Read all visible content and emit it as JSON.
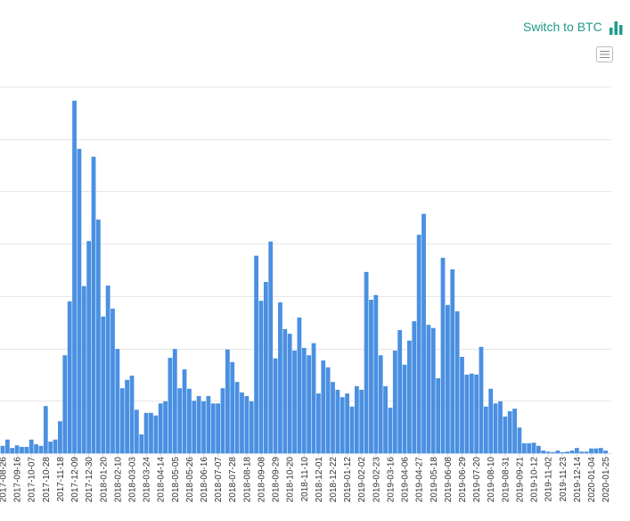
{
  "switch_label": "Switch to BTC",
  "chart_data": {
    "type": "bar",
    "color": "#4a90e2",
    "categories": [
      "2017-08-26",
      null,
      null,
      "2017-09-16",
      null,
      null,
      "2017-10-07",
      null,
      null,
      "2017-10-28",
      null,
      null,
      "2017-11-18",
      null,
      null,
      "2017-12-09",
      null,
      null,
      "2017-12-30",
      null,
      null,
      "2018-01-20",
      null,
      null,
      "2018-02-10",
      null,
      null,
      "2018-03-03",
      null,
      null,
      "2018-03-24",
      null,
      null,
      "2018-04-14",
      null,
      null,
      "2018-05-05",
      null,
      null,
      "2018-05-26",
      null,
      null,
      "2018-06-16",
      null,
      null,
      "2018-07-07",
      null,
      null,
      "2018-07-28",
      null,
      null,
      "2018-08-18",
      null,
      null,
      "2018-09-08",
      null,
      null,
      "2018-09-29",
      null,
      null,
      "2018-10-20",
      null,
      null,
      "2018-11-10",
      null,
      null,
      "2018-12-01",
      null,
      null,
      "2018-12-22",
      null,
      null,
      "2019-01-12",
      null,
      null,
      "2019-02-02",
      null,
      null,
      "2019-02-23",
      null,
      null,
      "2019-03-16",
      null,
      null,
      "2019-04-06",
      null,
      null,
      "2019-04-27",
      null,
      null,
      "2019-05-18",
      null,
      null,
      "2019-06-08",
      null,
      null,
      "2019-06-29",
      null,
      null,
      "2019-07-20",
      null,
      null,
      "2019-08-10",
      null,
      null,
      "2019-08-31",
      null,
      null,
      "2019-09-21",
      null,
      null,
      "2019-10-12",
      null,
      null,
      "2019-11-02",
      null,
      null,
      "2019-11-23",
      null,
      null,
      "2019-12-14",
      null,
      null,
      "2020-01-04",
      null,
      null,
      "2020-01-25"
    ],
    "values": [
      0.14,
      0.26,
      0.1,
      0.15,
      0.12,
      0.12,
      0.26,
      0.17,
      0.14,
      0.9,
      0.22,
      0.26,
      0.61,
      1.87,
      2.9,
      6.73,
      5.81,
      3.19,
      4.05,
      5.66,
      4.46,
      2.61,
      3.2,
      2.76,
      1.99,
      1.24,
      1.4,
      1.48,
      0.83,
      0.36,
      0.77,
      0.77,
      0.72,
      0.95,
      0.99,
      1.82,
      1.99,
      1.24,
      1.6,
      1.23,
      1.0,
      1.09,
      0.99,
      1.09,
      0.95,
      0.95,
      1.24,
      1.98,
      1.74,
      1.36,
      1.16,
      1.09,
      0.99,
      3.77,
      2.91,
      3.27,
      4.04,
      1.81,
      2.88,
      2.37,
      2.28,
      1.96,
      2.59,
      2.01,
      1.87,
      2.1,
      1.14,
      1.77,
      1.64,
      1.36,
      1.21,
      1.07,
      1.14,
      0.89,
      1.28,
      1.21,
      3.46,
      2.93,
      3.02,
      1.87,
      1.28,
      0.87,
      1.96,
      2.35,
      1.69,
      2.15,
      2.52,
      4.17,
      4.57,
      2.45,
      2.39,
      1.43,
      3.73,
      2.83,
      3.51,
      2.71,
      1.84,
      1.5,
      1.52,
      1.5,
      2.03,
      0.89,
      1.23,
      0.95,
      0.99,
      0.7,
      0.8,
      0.85,
      0.49,
      0.19,
      0.19,
      0.2,
      0.14,
      0.05,
      0.03,
      0.02,
      0.05,
      0.02,
      0.03,
      0.05,
      0.1,
      0.03,
      0.03,
      0.09,
      0.09,
      0.1,
      0.05
    ],
    "ylim": [
      0,
      7
    ],
    "gridlines": [
      1,
      2,
      3,
      4,
      5,
      6,
      7
    ],
    "grid": true
  }
}
